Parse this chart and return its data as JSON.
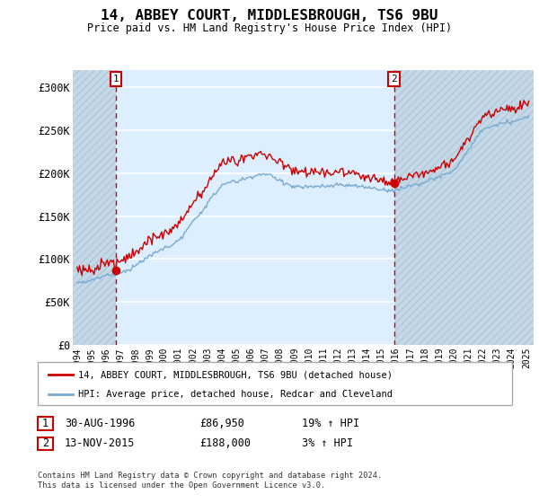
{
  "title": "14, ABBEY COURT, MIDDLESBROUGH, TS6 9BU",
  "subtitle": "Price paid vs. HM Land Registry's House Price Index (HPI)",
  "legend_line1": "14, ABBEY COURT, MIDDLESBROUGH, TS6 9BU (detached house)",
  "legend_line2": "HPI: Average price, detached house, Redcar and Cleveland",
  "transaction1_date": "30-AUG-1996",
  "transaction1_price": "£86,950",
  "transaction1_hpi": "19% ↑ HPI",
  "transaction1_year": 1996.66,
  "transaction1_value": 86950,
  "transaction2_date": "13-NOV-2015",
  "transaction2_price": "£188,000",
  "transaction2_hpi": "3% ↑ HPI",
  "transaction2_year": 2015.87,
  "transaction2_value": 188000,
  "footer": "Contains HM Land Registry data © Crown copyright and database right 2024.\nThis data is licensed under the Open Government Licence v3.0.",
  "ylim": [
    0,
    320000
  ],
  "yticks": [
    0,
    50000,
    100000,
    150000,
    200000,
    250000,
    300000
  ],
  "ytick_labels": [
    "£0",
    "£50K",
    "£100K",
    "£150K",
    "£200K",
    "£250K",
    "£300K"
  ],
  "hpi_color": "#7aaad0",
  "price_color": "#cc0000",
  "dot_color": "#cc0000",
  "background_color": "#ddeeff",
  "grid_color": "#ffffff"
}
